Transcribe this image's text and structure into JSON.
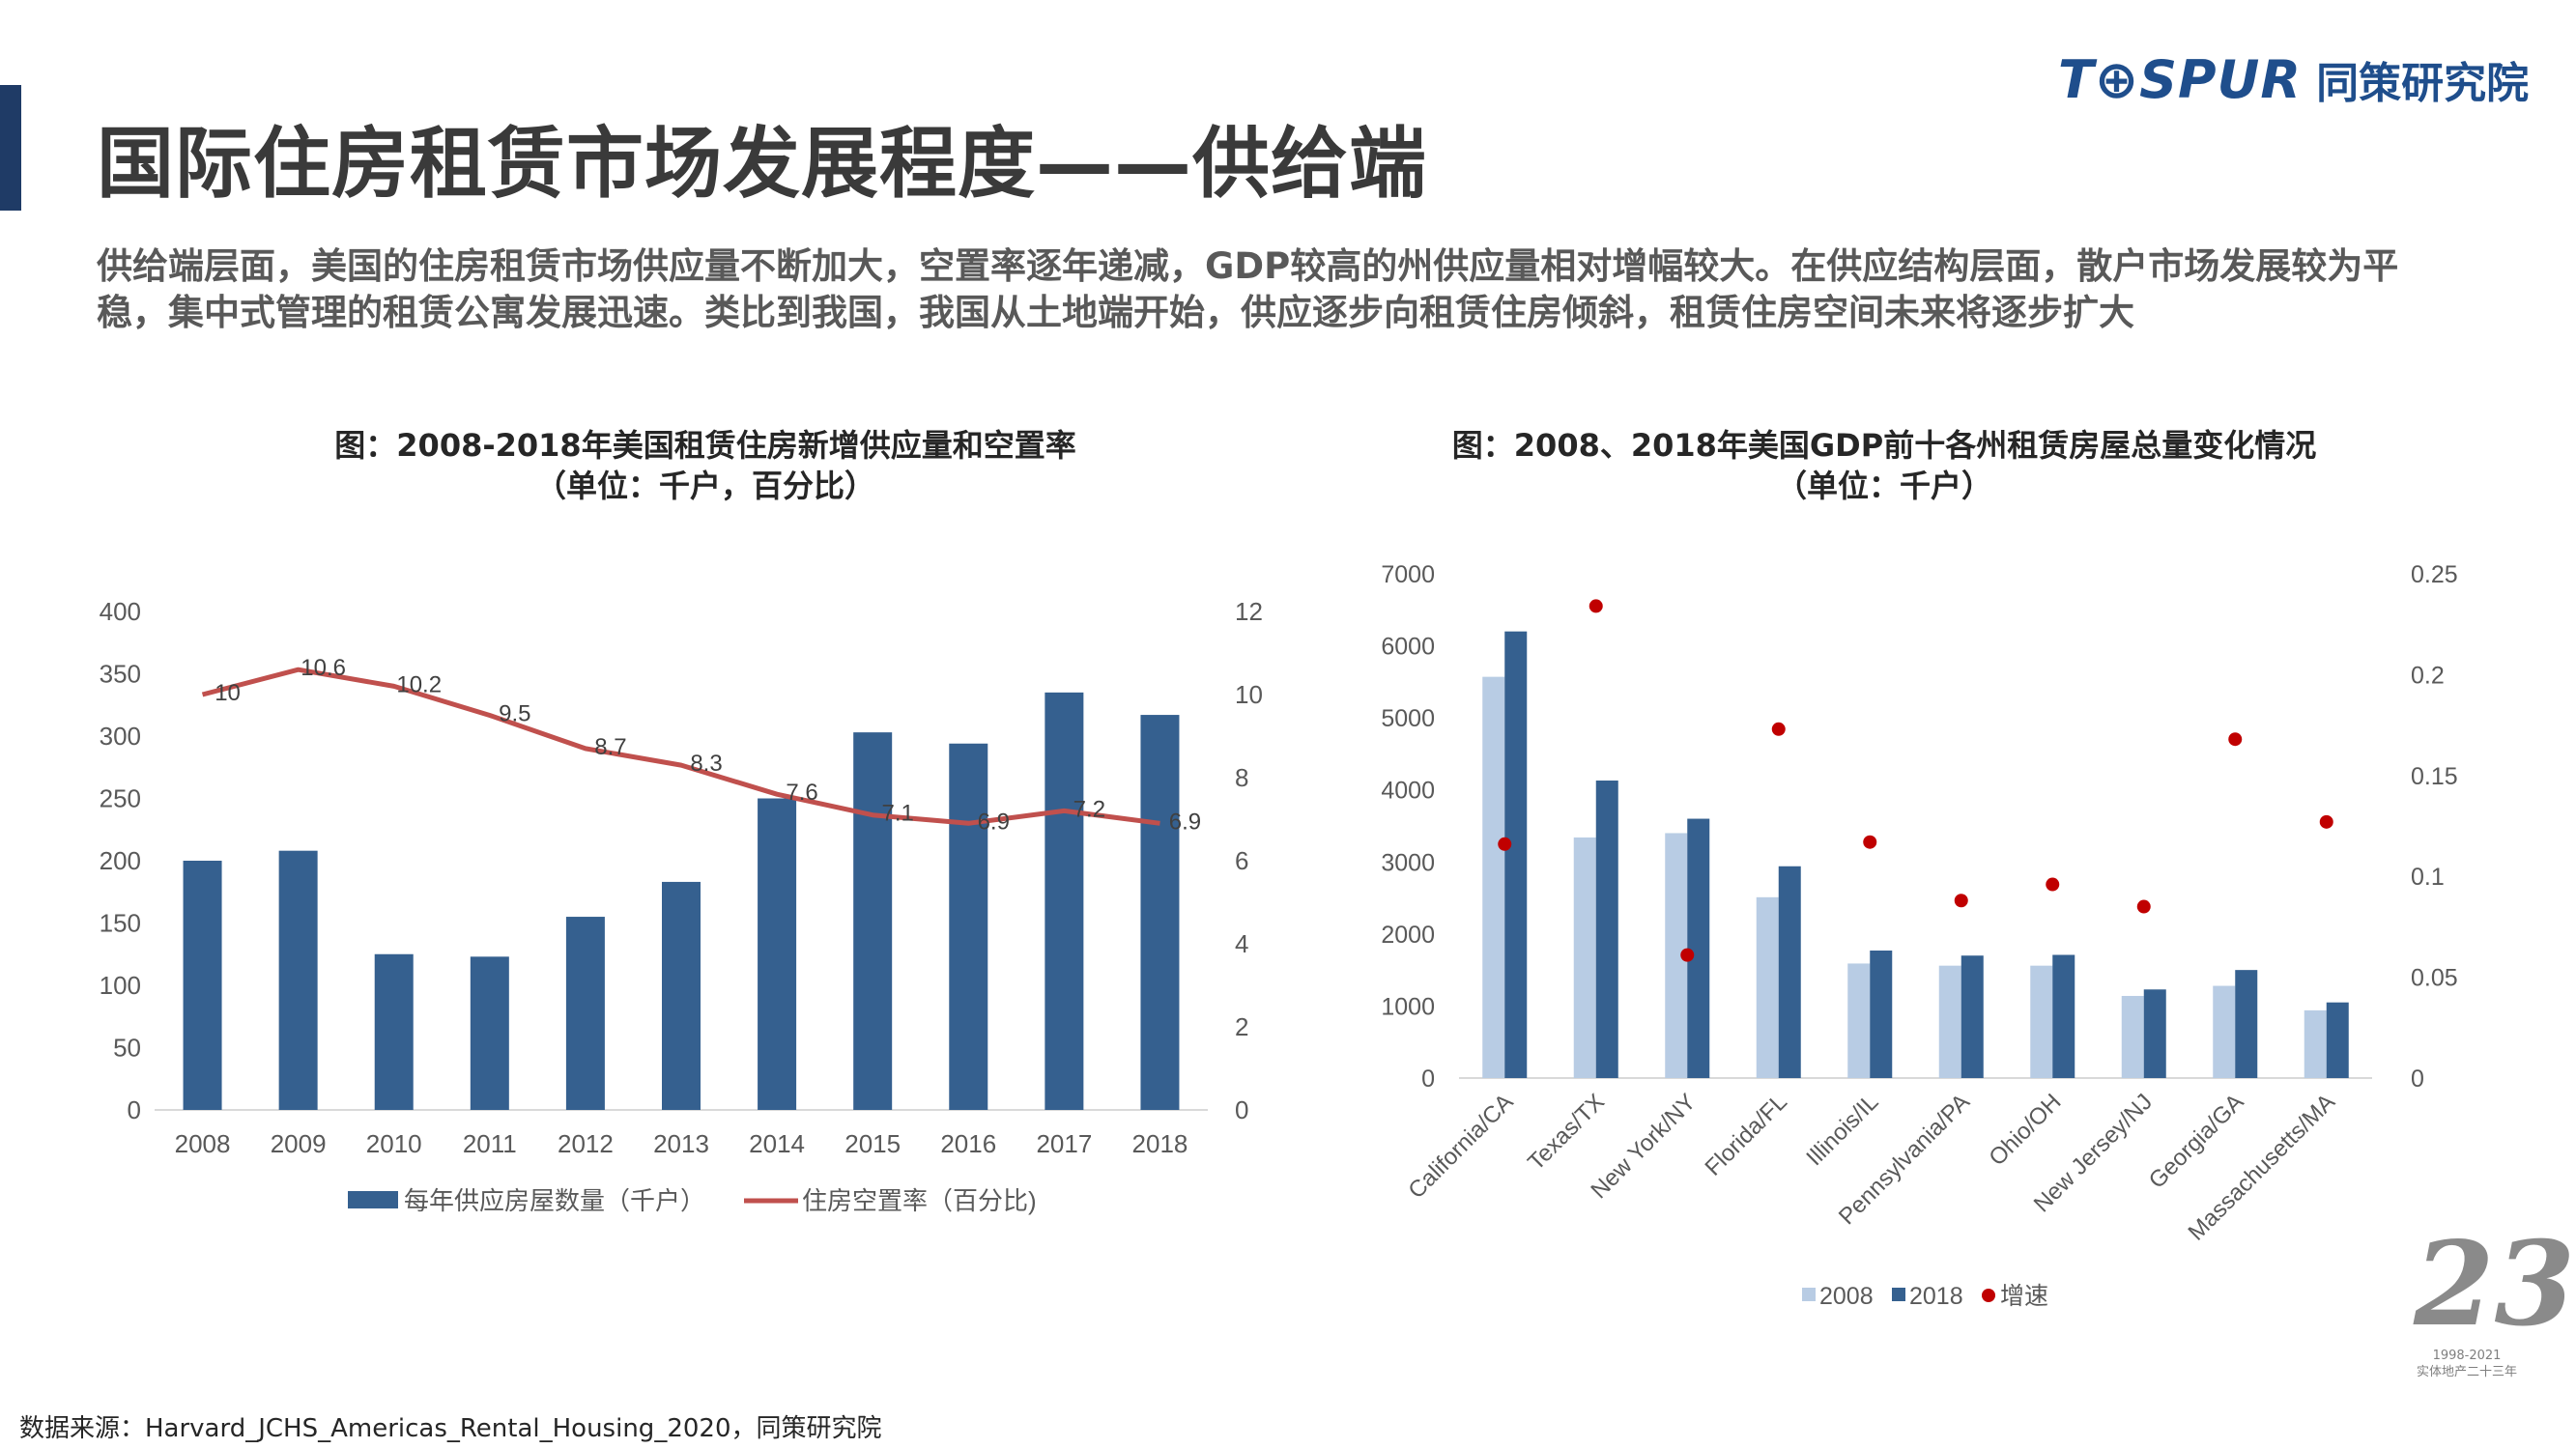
{
  "header": {
    "title": "国际住房租赁市场发展程度——供给端",
    "logo_brand": "T⊕SPUR",
    "logo_name": "同策研究院"
  },
  "intro": "供给端层面，美国的住房租赁市场供应量不断加大，空置率逐年递减，GDP较高的州供应量相对增幅较大。在供应结构层面，散户市场发展较为平稳，集中式管理的租赁公寓发展迅速。类比到我国，我国从土地端开始，供应逐步向租赁住房倾斜，租赁住房空间未来将逐步扩大",
  "colors": {
    "bar_primary": "#35608f",
    "bar_light": "#b8cce4",
    "line": "#c0504d",
    "dot": "#c00000",
    "axis": "#d9d9d9",
    "accent": "#1f3b66"
  },
  "chart_data": [
    {
      "type": "bar",
      "title": "图：2008-2018年美国租赁住房新增供应量和空置率",
      "subtitle": "（单位：千户，百分比）",
      "categories": [
        "2008",
        "2009",
        "2010",
        "2011",
        "2012",
        "2013",
        "2014",
        "2015",
        "2016",
        "2017",
        "2018"
      ],
      "series": [
        {
          "name": "每年供应房屋数量（千户）",
          "type": "bar",
          "axis": "left",
          "values": [
            200,
            208,
            125,
            123,
            155,
            183,
            250,
            303,
            294,
            335,
            317
          ]
        },
        {
          "name": "住房空置率（百分比)",
          "type": "line",
          "axis": "right",
          "values": [
            10,
            10.6,
            10.2,
            9.5,
            8.7,
            8.3,
            7.6,
            7.1,
            6.9,
            7.2,
            6.9
          ],
          "labels": [
            "10",
            "10.6",
            "10.2",
            "9.5",
            "8.7",
            "8.3",
            "7.6",
            "7.1",
            "6.9",
            "7.2",
            "6.9"
          ]
        }
      ],
      "ylim_left": [
        0,
        400
      ],
      "yticks_left": [
        "0",
        "50",
        "100",
        "150",
        "200",
        "250",
        "300",
        "350",
        "400"
      ],
      "ylim_right": [
        0,
        12
      ],
      "yticks_right": [
        "0",
        "2",
        "4",
        "6",
        "8",
        "10",
        "12"
      ],
      "legend_position": "bottom",
      "grid": false
    },
    {
      "type": "bar",
      "title": "图：2008、2018年美国GDP前十各州租赁房屋总量变化情况",
      "subtitle": "（单位：千户）",
      "categories": [
        "California/CA",
        "Texas/TX",
        "New York/NY",
        "Florida/FL",
        "Illinois/IL",
        "Pennsylvania/PA",
        "Ohio/OH",
        "New Jersey/NJ",
        "Georgia/GA",
        "Massachusetts/MA"
      ],
      "series": [
        {
          "name": "2008",
          "type": "bar",
          "axis": "left",
          "values": [
            5570,
            3340,
            3400,
            2510,
            1590,
            1560,
            1560,
            1140,
            1280,
            940
          ]
        },
        {
          "name": "2018",
          "type": "bar",
          "axis": "left",
          "values": [
            6200,
            4130,
            3600,
            2940,
            1770,
            1700,
            1710,
            1230,
            1500,
            1050
          ]
        },
        {
          "name": "增速",
          "type": "scatter",
          "axis": "right",
          "values": [
            0.116,
            0.234,
            0.061,
            0.173,
            0.117,
            0.088,
            0.096,
            0.085,
            0.168,
            0.127
          ]
        }
      ],
      "ylim_left": [
        0,
        7000
      ],
      "yticks_left": [
        "0",
        "1000",
        "2000",
        "3000",
        "4000",
        "5000",
        "6000",
        "7000"
      ],
      "ylim_right": [
        0,
        0.25
      ],
      "yticks_right": [
        "0",
        "0.05",
        "0.1",
        "0.15",
        "0.2",
        "0.25"
      ],
      "legend_position": "bottom",
      "grid": false
    }
  ],
  "footer": {
    "source": "数据来源：Harvard_JCHS_Americas_Rental_Housing_2020，同策研究院",
    "anniv_mark": "23",
    "anniv_years": "1998-2021",
    "anniv_caption": "实体地产二十三年"
  }
}
